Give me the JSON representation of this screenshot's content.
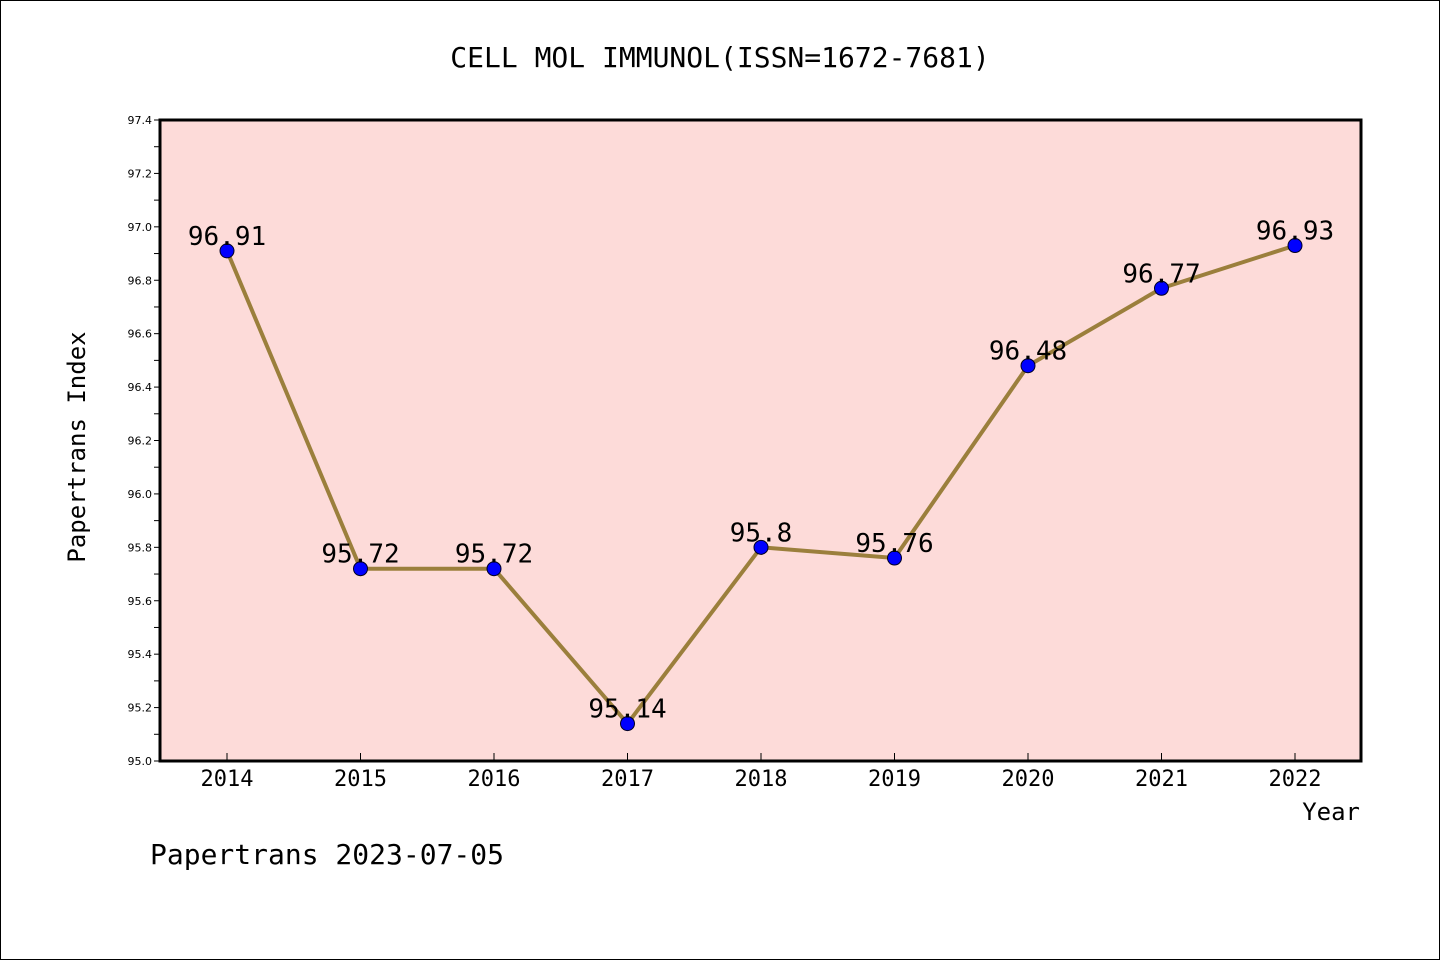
{
  "chart_data": {
    "type": "line",
    "title": "CELL MOL IMMUNOL(ISSN=1672-7681)",
    "xlabel": "Year",
    "ylabel": "Papertrans Index",
    "categories": [
      "2014",
      "2015",
      "2016",
      "2017",
      "2018",
      "2019",
      "2020",
      "2021",
      "2022"
    ],
    "values": [
      96.91,
      95.72,
      95.72,
      95.14,
      95.8,
      95.76,
      96.48,
      96.77,
      96.93
    ],
    "data_labels": [
      "96.91",
      "95.72",
      "95.72",
      "95.14",
      "95.8",
      "95.76",
      "96.48",
      "96.77",
      "96.93"
    ],
    "ylim": [
      95.0,
      97.4
    ],
    "yticks": [
      "95.0",
      "95.2",
      "95.4",
      "95.6",
      "95.8",
      "96.0",
      "96.2",
      "96.4",
      "96.6",
      "96.8",
      "97.0",
      "97.2",
      "97.4"
    ],
    "grid": false,
    "legend": "none",
    "colors": {
      "plot_background": "#fddbd9",
      "line": "#9b7f3c",
      "marker": "#0000ff"
    }
  },
  "footer": "Papertrans 2023-07-05"
}
